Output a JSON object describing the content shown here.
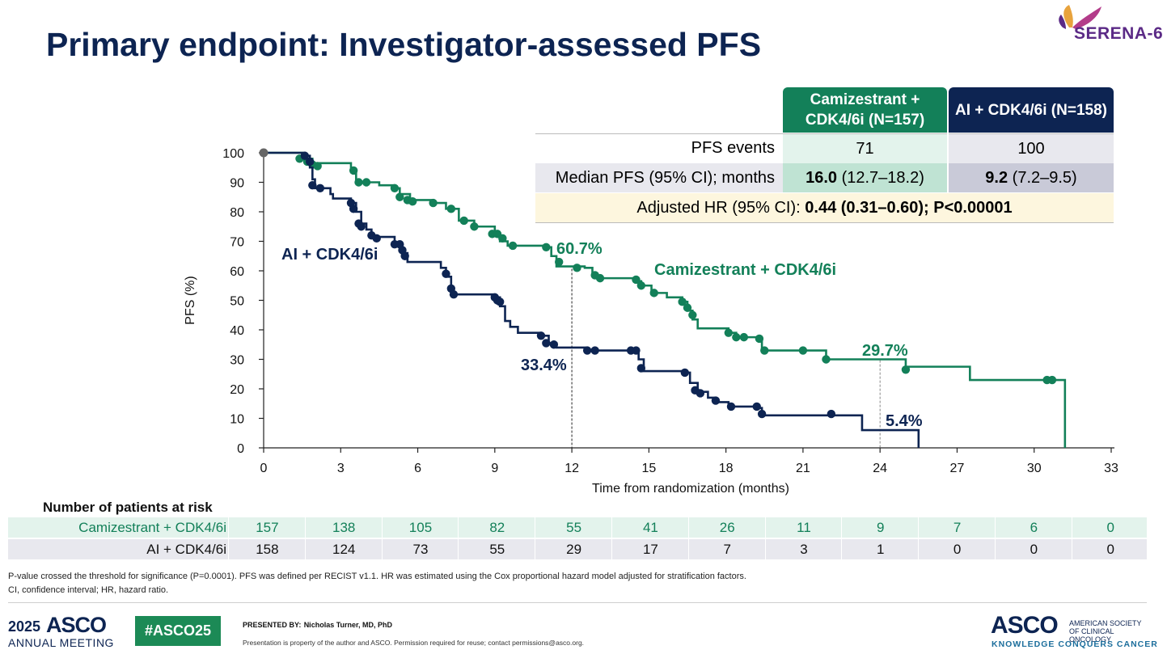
{
  "title": "Primary endpoint: Investigator-assessed PFS",
  "logo_text": "SERENA-6",
  "colors": {
    "camizestrant": "#138059",
    "ai": "#0d2452",
    "cam_light": "#e3f3ec",
    "cam_mid": "#bfe3d3",
    "ai_light": "#e8e8ee",
    "ai_mid": "#c9cad8",
    "hr_bg": "#fdf6de"
  },
  "summary_table": {
    "col_cam": "Camizestrant + CDK4/6i (N=157)",
    "col_ai": "AI + CDK4/6i (N=158)",
    "row_events_label": "PFS events",
    "events_cam": "71",
    "events_ai": "100",
    "row_median_label": "Median PFS (95% CI); months",
    "median_cam_value": "16.0",
    "median_cam_ci": "(12.7–18.2)",
    "median_ai_value": "9.2",
    "median_ai_ci": "(7.2–9.5)",
    "hr_label": "Adjusted HR (95% CI):",
    "hr_value": "0.44 (0.31–0.60); P<0.00001"
  },
  "chart_data": {
    "type": "line",
    "xlabel": "Time from randomization (months)",
    "ylabel": "PFS (%)",
    "xlim": [
      0,
      33
    ],
    "ylim": [
      0,
      100
    ],
    "xticks": [
      0,
      3,
      6,
      9,
      12,
      15,
      18,
      21,
      24,
      27,
      30,
      33
    ],
    "yticks": [
      0,
      10,
      20,
      30,
      40,
      50,
      60,
      70,
      80,
      90,
      100
    ],
    "series": [
      {
        "name": "Camizestrant + CDK4/6i",
        "color": "#138059",
        "steps": [
          [
            0,
            100
          ],
          [
            1.5,
            98
          ],
          [
            1.9,
            96.5
          ],
          [
            3.4,
            94
          ],
          [
            3.6,
            90
          ],
          [
            4.5,
            89
          ],
          [
            5.1,
            88
          ],
          [
            5.3,
            86
          ],
          [
            5.7,
            84
          ],
          [
            6.6,
            83
          ],
          [
            7.1,
            81
          ],
          [
            7.6,
            77
          ],
          [
            8.2,
            75
          ],
          [
            9.0,
            72.5
          ],
          [
            9.2,
            70
          ],
          [
            9.5,
            68.5
          ],
          [
            11.0,
            68
          ],
          [
            11.2,
            65
          ],
          [
            11.4,
            61.5
          ],
          [
            12.5,
            61
          ],
          [
            12.8,
            59
          ],
          [
            13.0,
            57.5
          ],
          [
            14.5,
            56.5
          ],
          [
            14.7,
            55
          ],
          [
            15.1,
            52.5
          ],
          [
            15.7,
            51
          ],
          [
            16.3,
            49.5
          ],
          [
            16.5,
            46.5
          ],
          [
            16.7,
            43.5
          ],
          [
            16.9,
            40.5
          ],
          [
            18.1,
            39
          ],
          [
            18.4,
            37.5
          ],
          [
            19.2,
            37
          ],
          [
            19.4,
            33
          ],
          [
            21.0,
            33
          ],
          [
            21.9,
            30
          ],
          [
            25.0,
            27.5
          ],
          [
            27.5,
            23
          ],
          [
            31.2,
            0
          ]
        ],
        "censors": [
          [
            1.4,
            98
          ],
          [
            1.7,
            97
          ],
          [
            1.9,
            96
          ],
          [
            2.1,
            95.5
          ],
          [
            3.5,
            94
          ],
          [
            3.7,
            90
          ],
          [
            4.0,
            90
          ],
          [
            5.1,
            88
          ],
          [
            5.3,
            85
          ],
          [
            5.6,
            84
          ],
          [
            5.8,
            83.5
          ],
          [
            6.6,
            83
          ],
          [
            7.3,
            81
          ],
          [
            7.8,
            77
          ],
          [
            8.2,
            75
          ],
          [
            8.9,
            72.5
          ],
          [
            9.1,
            72.5
          ],
          [
            9.3,
            71
          ],
          [
            9.7,
            68.5
          ],
          [
            11.0,
            68
          ],
          [
            11.5,
            63
          ],
          [
            12.2,
            61
          ],
          [
            12.9,
            58.5
          ],
          [
            13.1,
            57.5
          ],
          [
            14.5,
            57
          ],
          [
            14.7,
            55
          ],
          [
            15.2,
            52.5
          ],
          [
            16.3,
            49.5
          ],
          [
            16.5,
            47.5
          ],
          [
            16.7,
            45
          ],
          [
            18.1,
            39
          ],
          [
            18.4,
            37.5
          ],
          [
            18.7,
            37.5
          ],
          [
            19.3,
            37
          ],
          [
            19.5,
            33
          ],
          [
            21.0,
            33
          ],
          [
            21.9,
            30
          ],
          [
            25.0,
            26.5
          ],
          [
            30.5,
            23
          ],
          [
            30.7,
            23
          ]
        ],
        "landmarks": [
          {
            "x": 12,
            "y": 60.7,
            "label": "60.7%"
          },
          {
            "x": 24,
            "y": 29.7,
            "label": "29.7%"
          }
        ],
        "curve_label": "Camizestrant + CDK4/6i"
      },
      {
        "name": "AI + CDK4/6i",
        "color": "#0d2452",
        "steps": [
          [
            0,
            100
          ],
          [
            1.6,
            99
          ],
          [
            1.8,
            95
          ],
          [
            1.9,
            91
          ],
          [
            2.0,
            88
          ],
          [
            2.6,
            86
          ],
          [
            2.7,
            84.5
          ],
          [
            3.4,
            83
          ],
          [
            3.6,
            80
          ],
          [
            3.8,
            76
          ],
          [
            4.0,
            74
          ],
          [
            4.2,
            71.5
          ],
          [
            5.1,
            69
          ],
          [
            5.4,
            66
          ],
          [
            5.6,
            63
          ],
          [
            6.9,
            61
          ],
          [
            7.1,
            58
          ],
          [
            7.3,
            54
          ],
          [
            7.4,
            52
          ],
          [
            9.0,
            51
          ],
          [
            9.2,
            48
          ],
          [
            9.4,
            43
          ],
          [
            9.6,
            41
          ],
          [
            9.9,
            39
          ],
          [
            10.8,
            38
          ],
          [
            11.1,
            35.5
          ],
          [
            11.4,
            34
          ],
          [
            12.6,
            33
          ],
          [
            14.3,
            33
          ],
          [
            14.6,
            30
          ],
          [
            14.8,
            26
          ],
          [
            16.4,
            25.5
          ],
          [
            16.6,
            22
          ],
          [
            16.9,
            19
          ],
          [
            17.3,
            17
          ],
          [
            17.6,
            15.5
          ],
          [
            18.1,
            14
          ],
          [
            19.2,
            13.5
          ],
          [
            19.4,
            11
          ],
          [
            23.3,
            6
          ],
          [
            25.5,
            0
          ]
        ],
        "censors": [
          [
            1.6,
            99
          ],
          [
            1.8,
            97
          ],
          [
            1.9,
            89
          ],
          [
            2.2,
            88
          ],
          [
            3.4,
            83
          ],
          [
            3.5,
            81
          ],
          [
            3.7,
            76
          ],
          [
            3.8,
            75
          ],
          [
            4.2,
            72
          ],
          [
            4.4,
            71
          ],
          [
            5.1,
            69
          ],
          [
            5.3,
            69
          ],
          [
            5.4,
            67
          ],
          [
            5.5,
            65
          ],
          [
            7.1,
            59
          ],
          [
            7.3,
            54
          ],
          [
            7.4,
            52
          ],
          [
            9.0,
            51
          ],
          [
            9.1,
            50
          ],
          [
            9.2,
            49.5
          ],
          [
            10.8,
            38
          ],
          [
            11.0,
            35.5
          ],
          [
            11.3,
            35
          ],
          [
            12.6,
            33
          ],
          [
            12.9,
            33
          ],
          [
            14.3,
            33
          ],
          [
            14.5,
            33
          ],
          [
            14.7,
            27
          ],
          [
            16.4,
            25.5
          ],
          [
            16.8,
            19.5
          ],
          [
            17.0,
            18.5
          ],
          [
            17.6,
            16
          ],
          [
            18.2,
            14
          ],
          [
            19.2,
            14
          ],
          [
            19.4,
            11.5
          ],
          [
            22.1,
            11.5
          ]
        ],
        "landmarks": [
          {
            "x": 12,
            "y": 33.4,
            "label": "33.4%"
          },
          {
            "x": 24,
            "y": 5.4,
            "label": "5.4%"
          }
        ],
        "curve_label": "AI + CDK4/6i"
      }
    ]
  },
  "at_risk": {
    "title": "Number of patients at risk",
    "rows": [
      {
        "label": "Camizestrant + CDK4/6i",
        "values": [
          "157",
          "138",
          "105",
          "82",
          "55",
          "41",
          "26",
          "11",
          "9",
          "7",
          "6",
          "0"
        ]
      },
      {
        "label": "AI + CDK4/6i",
        "values": [
          "158",
          "124",
          "73",
          "55",
          "29",
          "17",
          "7",
          "3",
          "1",
          "0",
          "0",
          "0"
        ]
      }
    ]
  },
  "footnotes": {
    "line1": "P-value crossed the threshold for significance (P=0.0001). PFS was defined per RECIST v1.1. HR was estimated using the Cox proportional hazard model adjusted for stratification factors.",
    "line2": "CI, confidence interval; HR, hazard ratio."
  },
  "footer": {
    "year": "2025",
    "asco": "ASCO",
    "meeting": "ANNUAL MEETING",
    "hashtag": "#ASCO25",
    "presented_by_label": "PRESENTED BY:",
    "presenter": "Nicholas Turner, MD, PhD",
    "property_note": "Presentation is property of the author and ASCO. Permission required for reuse; contact permissions@asco.org.",
    "asco_logo": "ASCO",
    "asco_side": "AMERICAN SOCIETY OF CLINICAL ONCOLOGY",
    "asco_tagline": "KNOWLEDGE CONQUERS CANCER"
  }
}
